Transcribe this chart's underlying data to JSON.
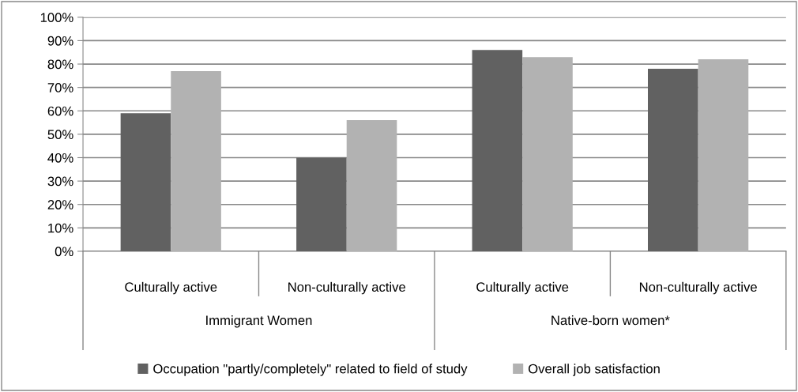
{
  "chart_data": {
    "type": "bar",
    "categories": [
      "Culturally active",
      "Non-culturally active",
      "Culturally active",
      "Non-culturally active"
    ],
    "series": [
      {
        "name": "Occupation \"partly/completely\" related to field of study",
        "color": "#616161",
        "values": [
          59,
          40,
          86,
          78
        ]
      },
      {
        "name": "Overall job satisfaction",
        "color": "#b2b2b2",
        "values": [
          77,
          56,
          83,
          82
        ]
      }
    ],
    "annotations": [
      "Immigrant Women",
      "Native-born women*"
    ],
    "ylim": [
      0,
      100
    ],
    "yticks": [
      {
        "value": 0,
        "label": "0%"
      },
      {
        "value": 10,
        "label": "10%"
      },
      {
        "value": 20,
        "label": "20%"
      },
      {
        "value": 30,
        "label": "30%"
      },
      {
        "value": 40,
        "label": "40%"
      },
      {
        "value": 50,
        "label": "50%"
      },
      {
        "value": 60,
        "label": "60%"
      },
      {
        "value": 70,
        "label": "70%"
      },
      {
        "value": 80,
        "label": "80%"
      },
      {
        "value": 90,
        "label": "90%"
      },
      {
        "value": 100,
        "label": "100%"
      }
    ],
    "grid": "y",
    "legend": "bottom"
  }
}
